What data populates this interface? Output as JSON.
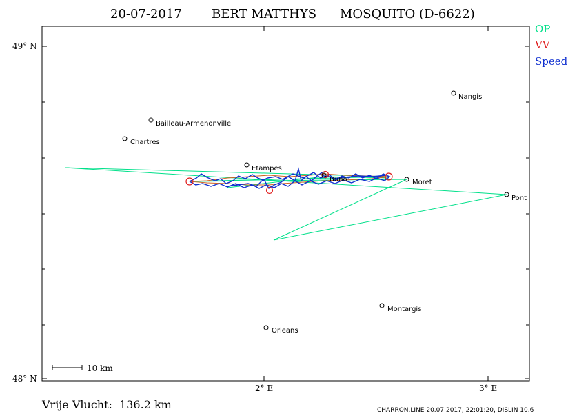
{
  "header": {
    "date": "20-07-2017",
    "pilot": "BERT MATTHYS",
    "glider": "MOSQUITO (D-6622)"
  },
  "legend": {
    "items": [
      {
        "label": "OP",
        "color": "#00e08a"
      },
      {
        "label": "VV",
        "color": "#e02020"
      },
      {
        "label": "Speed",
        "color": "#1030d0"
      }
    ]
  },
  "axes": {
    "lat_top": "49° N",
    "lat_bottom": "48° N",
    "lon_2": "2° E",
    "lon_3": "3° E"
  },
  "scale_bar": {
    "label": "10 km"
  },
  "places": [
    {
      "name": "Nangis",
      "lon": 2.85,
      "lat": 48.86
    },
    {
      "name": "Bailleau-Armenonville",
      "lon": 1.53,
      "lat": 48.77
    },
    {
      "name": "Chartres",
      "lon": 1.42,
      "lat": 48.72
    },
    {
      "name": "Etampes",
      "lon": 1.92,
      "lat": 48.65
    },
    {
      "name": "Buno",
      "lon": 2.3,
      "lat": 48.6
    },
    {
      "name": "Moret",
      "lon": 2.64,
      "lat": 48.6
    },
    {
      "name": "Pont",
      "lon": 3.08,
      "lat": 48.55
    },
    {
      "name": "Montargis",
      "lon": 2.53,
      "lat": 48.22
    },
    {
      "name": "Orleans",
      "lon": 2.01,
      "lat": 48.16
    }
  ],
  "footer": {
    "distance": "Vrije Vlucht:  136.2 km",
    "credit": "CHARRON.LINE 20.07.2017, 22:01:20, DISLIN 10.6"
  }
}
